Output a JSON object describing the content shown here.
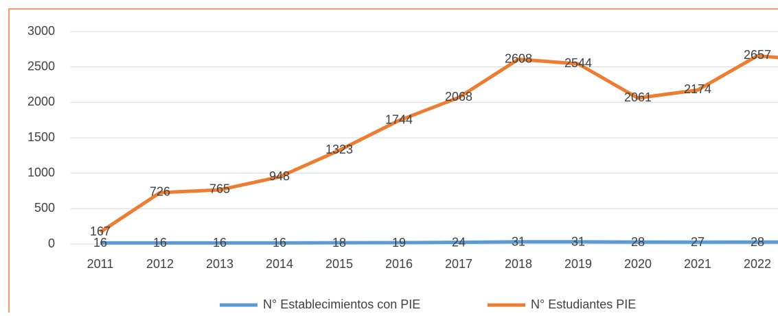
{
  "chart_data": {
    "type": "line",
    "categories": [
      "2011",
      "2012",
      "2013",
      "2014",
      "2015",
      "2016",
      "2017",
      "2018",
      "2019",
      "2020",
      "2021",
      "2022",
      null
    ],
    "series": [
      {
        "name": "N° Establecimientos con PIE",
        "color": "#5b9bd5",
        "values": [
          16,
          16,
          16,
          16,
          18,
          19,
          24,
          31,
          31,
          28,
          27,
          28,
          28
        ]
      },
      {
        "name": "N° Estudiantes PIE",
        "color": "#ed7d31",
        "values": [
          167,
          726,
          765,
          948,
          1323,
          1744,
          2068,
          2608,
          2544,
          2061,
          2174,
          2657,
          2590
        ]
      }
    ],
    "ylim": [
      0,
      3000
    ],
    "yticks": [
      0,
      500,
      1000,
      1500,
      2000,
      2500,
      3000
    ],
    "grid": true,
    "legend": "bottom"
  }
}
